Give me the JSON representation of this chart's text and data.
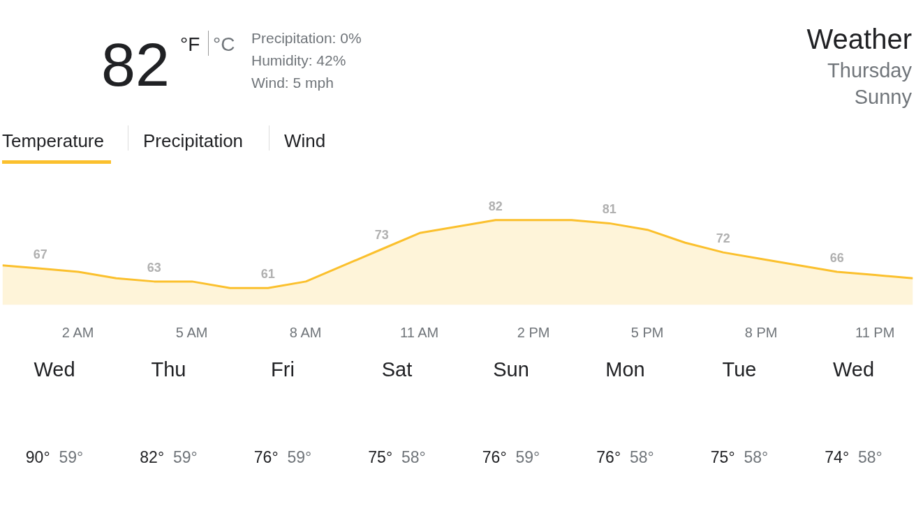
{
  "chart_data": {
    "type": "area",
    "title": "Weather",
    "annotations": [
      "82",
      "°F",
      "°C",
      "Precipitation: 0%",
      "Humidity: 42%",
      "Wind: 5 mph",
      "Thursday",
      "Sunny",
      "Temperature",
      "Precipitation",
      "Wind",
      "Wed",
      "90°",
      "59°",
      "Thu",
      "82°",
      "59°",
      "Fri",
      "76°",
      "59°",
      "Sat",
      "75°",
      "58°",
      "Sun",
      "76°",
      "59°",
      "Mon",
      "76°",
      "58°",
      "Tue",
      "75°",
      "58°",
      "Wed",
      "74°",
      "58°"
    ],
    "categories": [
      null,
      null,
      "2 AM",
      null,
      null,
      "5 AM",
      null,
      null,
      "8 AM",
      null,
      null,
      "11 AM",
      null,
      null,
      "2 PM",
      null,
      null,
      "5 PM",
      null,
      null,
      "8 PM",
      null,
      null,
      "11 PM",
      null
    ],
    "series": [
      {
        "color": "#fbc02d",
        "values": [
          68,
          67,
          66,
          64,
          63,
          63,
          61,
          61,
          63,
          68,
          73,
          78,
          80,
          82,
          82,
          82,
          81,
          79,
          75,
          72,
          70,
          68,
          66,
          65,
          64
        ],
        "value_labels": [
          null,
          "67",
          null,
          null,
          "63",
          null,
          null,
          "61",
          null,
          null,
          "73",
          null,
          null,
          "82",
          null,
          null,
          "81",
          null,
          null,
          "72",
          null,
          null,
          "66",
          null,
          null
        ]
      }
    ],
    "tick_labels": "x",
    "grid": false
  }
}
